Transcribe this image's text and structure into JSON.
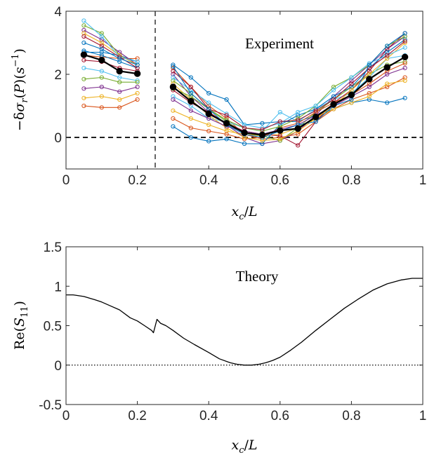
{
  "chart_data": [
    {
      "type": "line",
      "annotation": "Experiment",
      "xlabel": "x_c/L",
      "ylabel": "−δσ_r(P)(s^−1)",
      "xlim": [
        0,
        1
      ],
      "ylim": [
        -1,
        4
      ],
      "xticks": [
        "0",
        "0.2",
        "0.4",
        "0.6",
        "0.8",
        "1"
      ],
      "yticks": [
        "0",
        "2",
        "4"
      ],
      "reference_lines": [
        {
          "orientation": "horizontal",
          "value": 0,
          "style": "dashed"
        },
        {
          "orientation": "vertical",
          "value": 0.25,
          "style": "dashed"
        }
      ],
      "x": [
        0.05,
        0.1,
        0.15,
        0.2,
        0.3,
        0.35,
        0.4,
        0.45,
        0.5,
        0.55,
        0.6,
        0.65,
        0.7,
        0.75,
        0.8,
        0.85,
        0.9,
        0.95
      ],
      "series": [
        {
          "color": "#0072BD",
          "values": [
            2.7,
            2.7,
            2.6,
            2.4,
            2.3,
            1.9,
            1.4,
            1.2,
            0.4,
            0.45,
            0.5,
            0.5,
            0.7,
            0.9,
            1.1,
            1.2,
            1.1,
            1.25
          ]
        },
        {
          "color": "#D95319",
          "values": [
            2.6,
            2.55,
            2.5,
            2.5,
            2.2,
            1.6,
            1.0,
            0.6,
            0.1,
            -0.05,
            0.0,
            0.1,
            0.5,
            0.9,
            1.2,
            1.4,
            1.6,
            1.9
          ]
        },
        {
          "color": "#EDB120",
          "values": [
            1.25,
            1.3,
            1.2,
            1.4,
            0.85,
            0.6,
            0.4,
            0.2,
            0.1,
            0.05,
            0.1,
            0.3,
            0.6,
            0.9,
            1.1,
            1.3,
            1.7,
            1.8
          ]
        },
        {
          "color": "#7E2F8E",
          "values": [
            3.4,
            3.1,
            2.7,
            2.3,
            2.0,
            1.3,
            0.8,
            0.4,
            0.0,
            -0.2,
            -0.1,
            0.2,
            0.7,
            1.3,
            1.8,
            2.3,
            2.8,
            3.2
          ]
        },
        {
          "color": "#77AC30",
          "values": [
            3.55,
            3.3,
            2.6,
            2.3,
            1.8,
            1.4,
            0.9,
            0.5,
            0.15,
            0.05,
            -0.1,
            0.3,
            0.8,
            1.2,
            1.6,
            2.0,
            2.3,
            2.4
          ]
        },
        {
          "color": "#4DBEEE",
          "values": [
            2.2,
            2.1,
            1.9,
            1.8,
            1.3,
            1.0,
            0.6,
            0.5,
            0.3,
            0.2,
            0.8,
            0.5,
            0.9,
            1.2,
            1.4,
            1.9,
            2.5,
            2.6
          ]
        },
        {
          "color": "#A2142F",
          "values": [
            2.45,
            2.4,
            2.2,
            2.1,
            1.5,
            1.1,
            0.8,
            0.45,
            0.2,
            0.1,
            0.05,
            -0.25,
            0.5,
            1.1,
            1.5,
            2.1,
            2.8,
            3.3
          ]
        },
        {
          "color": "#0072BD",
          "values": [
            2.75,
            2.6,
            2.4,
            2.2,
            0.35,
            0.0,
            -0.12,
            -0.05,
            -0.2,
            -0.2,
            0.4,
            0.7,
            0.9,
            1.3,
            1.6,
            2.2,
            2.7,
            3.1
          ]
        },
        {
          "color": "#D95319",
          "values": [
            1.0,
            0.95,
            0.95,
            1.2,
            0.6,
            0.3,
            0.2,
            0.1,
            -0.05,
            0.0,
            0.3,
            0.45,
            0.8,
            1.1,
            1.35,
            1.7,
            2.1,
            2.35
          ]
        },
        {
          "color": "#EDB120",
          "values": [
            3.3,
            3.0,
            2.6,
            2.3,
            1.7,
            1.2,
            0.7,
            0.3,
            0.0,
            -0.1,
            -0.05,
            0.2,
            0.6,
            1.0,
            1.5,
            2.0,
            2.5,
            3.0
          ]
        },
        {
          "color": "#7E2F8E",
          "values": [
            1.55,
            1.6,
            1.45,
            1.6,
            1.2,
            0.85,
            0.6,
            0.35,
            0.2,
            0.1,
            0.25,
            0.4,
            0.7,
            1.0,
            1.3,
            1.6,
            2.0,
            2.2
          ]
        },
        {
          "color": "#77AC30",
          "values": [
            1.85,
            1.9,
            1.75,
            1.75,
            1.55,
            1.3,
            0.9,
            0.55,
            0.3,
            0.2,
            0.35,
            0.6,
            1.0,
            1.6,
            1.9,
            2.3,
            2.9,
            3.2
          ]
        },
        {
          "color": "#4DBEEE",
          "values": [
            3.7,
            3.2,
            2.55,
            2.4,
            1.9,
            1.5,
            1.1,
            0.75,
            0.4,
            0.3,
            0.45,
            0.8,
            1.0,
            1.5,
            1.9,
            2.35,
            2.6,
            2.85
          ]
        },
        {
          "color": "#A2142F",
          "values": [
            3.2,
            2.9,
            2.55,
            2.2,
            2.1,
            1.6,
            0.9,
            0.7,
            0.3,
            0.25,
            0.5,
            0.55,
            0.85,
            1.2,
            1.7,
            2.2,
            2.6,
            3.05
          ]
        },
        {
          "color": "#0072BD",
          "values": [
            3.0,
            2.8,
            2.5,
            2.3,
            2.25,
            1.4,
            0.9,
            0.4,
            0.1,
            0.0,
            0.2,
            0.4,
            0.5,
            1.0,
            1.2,
            2.3,
            2.9,
            3.3
          ]
        },
        {
          "color": "#000000",
          "bold": true,
          "values": [
            2.62,
            2.45,
            2.1,
            2.02,
            1.6,
            1.15,
            0.75,
            0.45,
            0.15,
            0.08,
            0.22,
            0.28,
            0.65,
            1.05,
            1.35,
            1.85,
            2.22,
            2.55
          ]
        }
      ]
    },
    {
      "type": "line",
      "annotation": "Theory",
      "xlabel": "x_c/L",
      "ylabel": "Re(S_11)",
      "xlim": [
        0,
        1
      ],
      "ylim": [
        -0.5,
        1.5
      ],
      "xticks": [
        "0",
        "0.2",
        "0.4",
        "0.6",
        "0.8",
        "1"
      ],
      "yticks": [
        "-0.5",
        "0",
        "0.5",
        "1",
        "1.5"
      ],
      "reference_lines": [
        {
          "orientation": "horizontal",
          "value": 0,
          "style": "dotted"
        }
      ],
      "x": [
        0,
        0.02,
        0.05,
        0.08,
        0.1,
        0.12,
        0.15,
        0.18,
        0.2,
        0.22,
        0.24,
        0.245,
        0.255,
        0.265,
        0.28,
        0.3,
        0.33,
        0.36,
        0.4,
        0.43,
        0.46,
        0.48,
        0.5,
        0.52,
        0.54,
        0.56,
        0.58,
        0.6,
        0.63,
        0.66,
        0.7,
        0.74,
        0.78,
        0.82,
        0.86,
        0.9,
        0.94,
        0.97,
        1.0
      ],
      "values": [
        0.89,
        0.89,
        0.87,
        0.83,
        0.8,
        0.76,
        0.7,
        0.6,
        0.56,
        0.5,
        0.44,
        0.41,
        0.58,
        0.53,
        0.5,
        0.44,
        0.34,
        0.26,
        0.16,
        0.08,
        0.03,
        0.01,
        0.0,
        0.0,
        0.01,
        0.03,
        0.06,
        0.1,
        0.19,
        0.29,
        0.44,
        0.58,
        0.72,
        0.84,
        0.95,
        1.03,
        1.08,
        1.1,
        1.1
      ]
    }
  ]
}
